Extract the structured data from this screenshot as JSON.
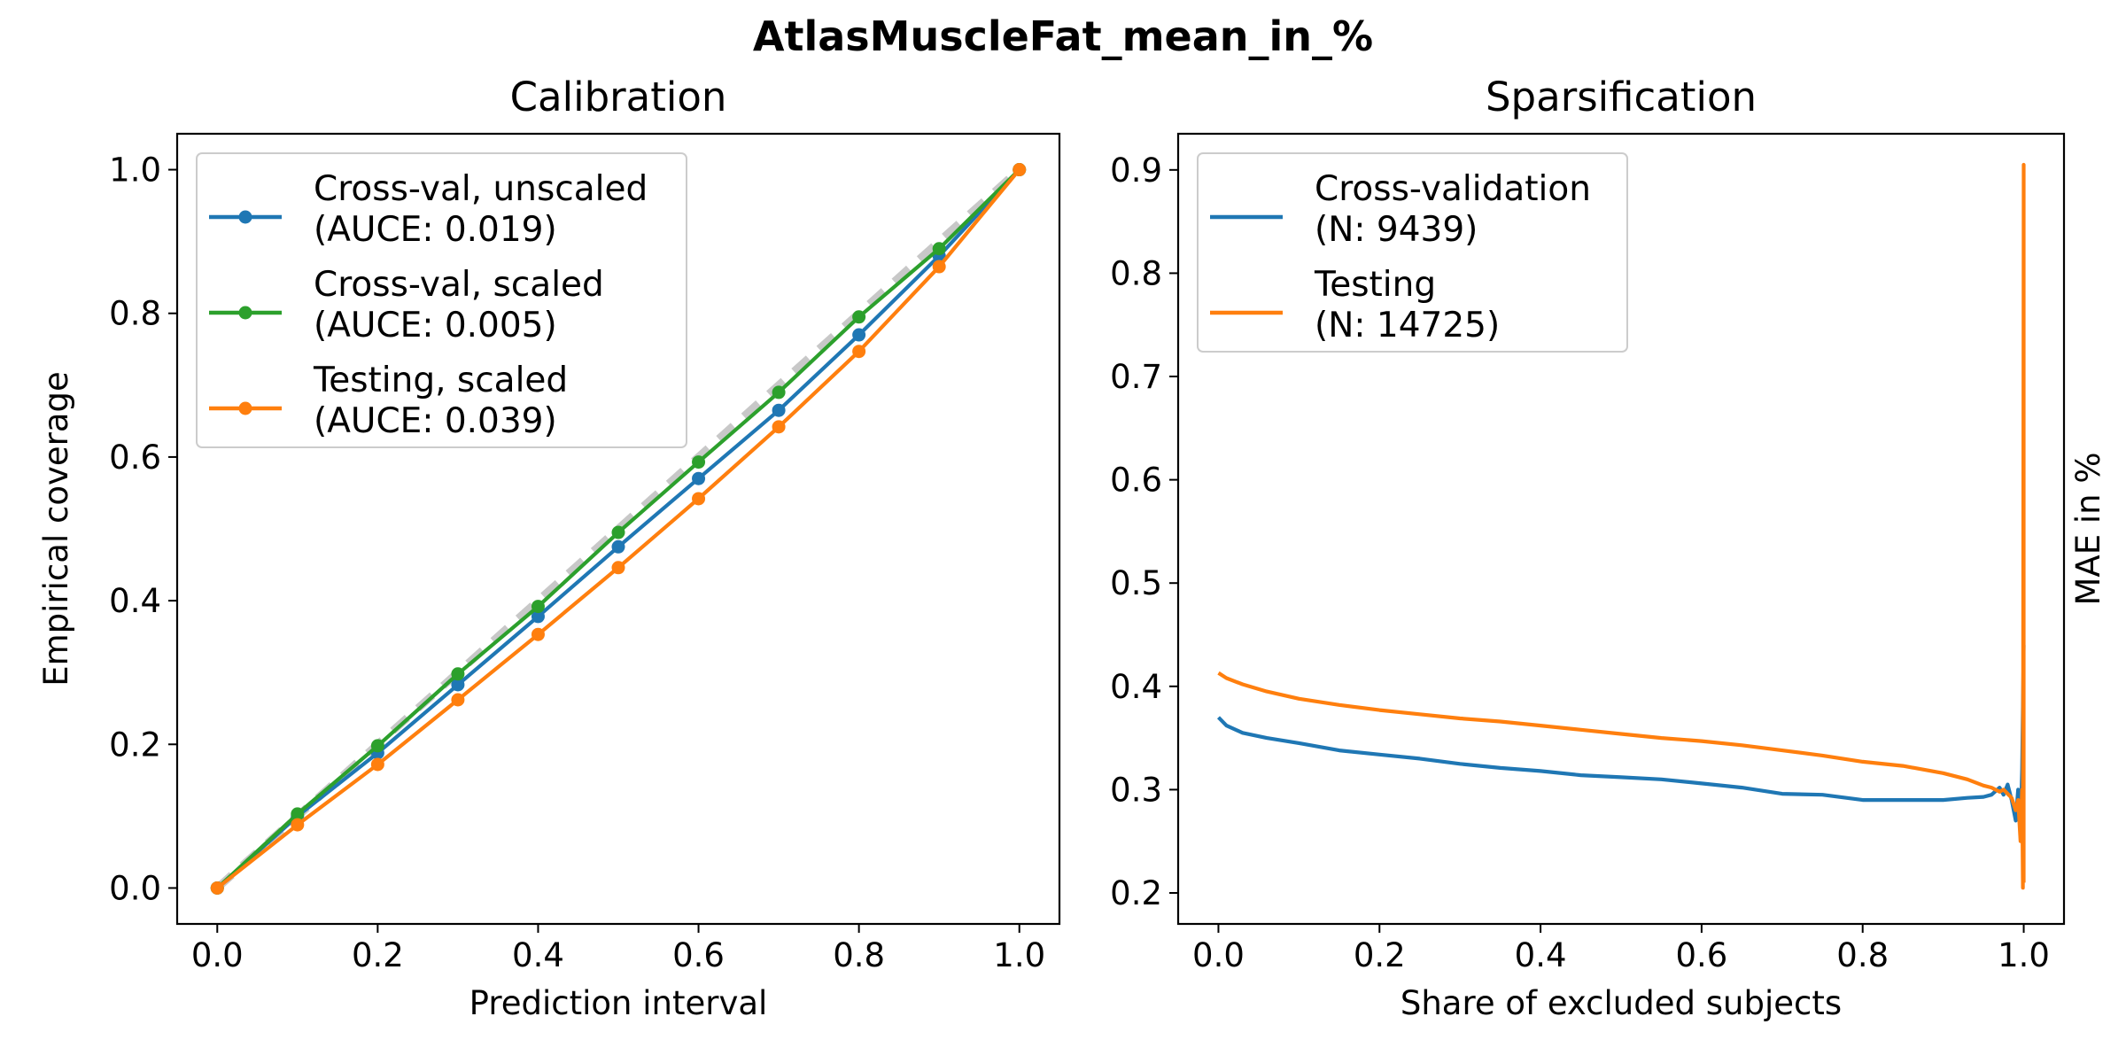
{
  "figure": {
    "title": "AtlasMuscleFat_mean_in_%"
  },
  "chart_data": [
    {
      "type": "line",
      "title": "Calibration",
      "xlabel": "Prediction interval",
      "ylabel": "Empirical coverage",
      "xlim": [
        -0.05,
        1.05
      ],
      "ylim": [
        -0.05,
        1.05
      ],
      "xticks": [
        "0.0",
        "0.2",
        "0.4",
        "0.6",
        "0.8",
        "1.0"
      ],
      "yticks": [
        "0.0",
        "0.2",
        "0.4",
        "0.6",
        "0.8",
        "1.0"
      ],
      "grid": false,
      "legend_position": "top-left",
      "reference_line": {
        "x": [
          0,
          1
        ],
        "y": [
          0,
          1
        ],
        "color": "#c8c8c8",
        "style": "dashed"
      },
      "x": [
        0.0,
        0.1,
        0.2,
        0.3,
        0.4,
        0.5,
        0.6,
        0.7,
        0.8,
        0.9,
        1.0
      ],
      "series": [
        {
          "name": "Cross-val, unscaled",
          "name_line2": "(AUCE: 0.019)",
          "color": "#1f77b4",
          "values": [
            0.0,
            0.1,
            0.188,
            0.283,
            0.378,
            0.475,
            0.57,
            0.665,
            0.77,
            0.88,
            1.0
          ]
        },
        {
          "name": "Cross-val, scaled",
          "name_line2": "(AUCE: 0.005)",
          "color": "#2ca02c",
          "values": [
            0.0,
            0.103,
            0.198,
            0.298,
            0.392,
            0.495,
            0.593,
            0.69,
            0.795,
            0.89,
            1.0
          ]
        },
        {
          "name": "Testing, scaled",
          "name_line2": "(AUCE: 0.039)",
          "color": "#ff7f0e",
          "values": [
            0.0,
            0.088,
            0.172,
            0.262,
            0.353,
            0.446,
            0.542,
            0.642,
            0.747,
            0.865,
            1.0
          ]
        }
      ]
    },
    {
      "type": "line",
      "title": "Sparsification",
      "xlabel": "Share of excluded subjects",
      "ylabel": "MAE in %",
      "ylabel_side": "right",
      "xlim": [
        -0.05,
        1.05
      ],
      "ylim": [
        0.17,
        0.935
      ],
      "xticks": [
        "0.0",
        "0.2",
        "0.4",
        "0.6",
        "0.8",
        "1.0"
      ],
      "yticks": [
        "0.2",
        "0.3",
        "0.4",
        "0.5",
        "0.6",
        "0.7",
        "0.8",
        "0.9"
      ],
      "grid": false,
      "legend_position": "top-left",
      "series": [
        {
          "name": "Cross-validation",
          "name_line2": "(N: 9439)",
          "color": "#1f77b4",
          "x": [
            0.0,
            0.01,
            0.03,
            0.06,
            0.1,
            0.15,
            0.2,
            0.25,
            0.3,
            0.35,
            0.4,
            0.45,
            0.5,
            0.55,
            0.6,
            0.65,
            0.7,
            0.75,
            0.8,
            0.85,
            0.9,
            0.93,
            0.95,
            0.96,
            0.97,
            0.975,
            0.98,
            0.985,
            0.99,
            0.993,
            0.996,
            0.998,
            1.0
          ],
          "values": [
            0.37,
            0.362,
            0.355,
            0.35,
            0.345,
            0.338,
            0.334,
            0.33,
            0.325,
            0.321,
            0.318,
            0.314,
            0.312,
            0.31,
            0.306,
            0.302,
            0.296,
            0.295,
            0.29,
            0.29,
            0.29,
            0.292,
            0.293,
            0.295,
            0.302,
            0.295,
            0.305,
            0.29,
            0.27,
            0.3,
            0.26,
            0.32,
            0.44
          ]
        },
        {
          "name": "Testing",
          "name_line2": "(N: 14725)",
          "color": "#ff7f0e",
          "x": [
            0.0,
            0.01,
            0.03,
            0.06,
            0.1,
            0.15,
            0.2,
            0.25,
            0.3,
            0.35,
            0.4,
            0.45,
            0.5,
            0.55,
            0.6,
            0.65,
            0.7,
            0.75,
            0.8,
            0.85,
            0.9,
            0.93,
            0.95,
            0.96,
            0.97,
            0.975,
            0.98,
            0.985,
            0.99,
            0.993,
            0.996,
            0.998,
            0.999,
            1.0,
            1.0
          ],
          "values": [
            0.413,
            0.408,
            0.402,
            0.395,
            0.388,
            0.382,
            0.377,
            0.373,
            0.369,
            0.366,
            0.362,
            0.358,
            0.354,
            0.35,
            0.347,
            0.343,
            0.338,
            0.333,
            0.327,
            0.323,
            0.316,
            0.31,
            0.304,
            0.302,
            0.298,
            0.3,
            0.296,
            0.292,
            0.28,
            0.29,
            0.25,
            0.3,
            0.205,
            0.905,
            0.21
          ]
        }
      ]
    }
  ]
}
